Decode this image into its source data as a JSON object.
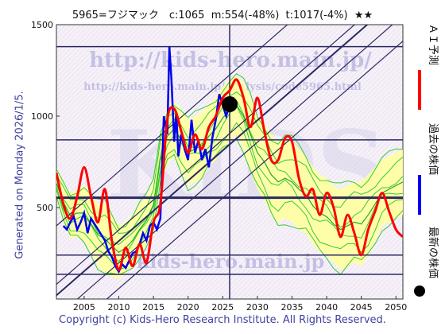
{
  "header": {
    "title": "5965=フジマック　c:1065  m:554(-48%)  t:1017(-4%)  ★★"
  },
  "side_note": "Generated on Monday 2026/1/5.",
  "footer": "Copyright (c) Kids-Hero Research Institute. All Rights Reserved.",
  "watermarks": {
    "url_main": "http://kids-hero.main.jp/",
    "url_sub": "http://kids-hero.main.jp/analysis/code5965.html",
    "url_bottom": "kids-hero.main.jp",
    "big": "KIDS"
  },
  "legend": {
    "ai_forecast": "ＡＩ予測",
    "past_price": "過去の株価",
    "latest_price": "最新の株価"
  },
  "colors": {
    "forecast": "#ff0000",
    "price": "#0000ee",
    "band": "#33cc33",
    "band_fill": "#ffffa0",
    "grid": "#2a2a60",
    "plot_bg": "#f4f0f8"
  },
  "chart_data": {
    "type": "line",
    "x_ticks": [
      2005,
      2010,
      2015,
      2020,
      2025,
      2030,
      2035,
      2040,
      2045,
      2050
    ],
    "y_ticks": [
      500,
      1000,
      1500
    ],
    "xlim": [
      2001,
      2051
    ],
    "ylim": [
      0,
      1500
    ],
    "horizontal_levels": [
      1380,
      870,
      554,
      240,
      135
    ],
    "current": {
      "year": 2026.0,
      "value": 1065
    },
    "markers": {
      "m": 554,
      "t": 1017
    },
    "series": [
      {
        "name": "ＡＩ予測",
        "x": [
          2001,
          2002,
          2003,
          2004,
          2005,
          2006,
          2007,
          2008,
          2009,
          2010,
          2011,
          2012,
          2013,
          2014,
          2015,
          2016,
          2017,
          2018,
          2019,
          2020,
          2021,
          2022,
          2023,
          2024,
          2025,
          2026,
          2027,
          2028,
          2029,
          2030,
          2031,
          2032,
          2033,
          2034,
          2035,
          2036,
          2037,
          2038,
          2039,
          2040,
          2041,
          2042,
          2043,
          2044,
          2045,
          2046,
          2047,
          2048,
          2049,
          2050,
          2051
        ],
        "values": [
          690,
          520,
          440,
          560,
          720,
          560,
          420,
          600,
          320,
          160,
          280,
          180,
          300,
          200,
          420,
          520,
          980,
          1040,
          920,
          800,
          900,
          820,
          940,
          1000,
          1100,
          1140,
          1200,
          1100,
          940,
          1100,
          920,
          760,
          760,
          880,
          860,
          660,
          560,
          600,
          460,
          580,
          500,
          340,
          460,
          360,
          240,
          380,
          480,
          580,
          480,
          380,
          340
        ]
      },
      {
        "name": "過去の株価",
        "x": [
          2002.0,
          2002.5,
          2003.0,
          2003.5,
          2004.0,
          2004.5,
          2005.0,
          2005.5,
          2006.0,
          2006.5,
          2007.0,
          2007.5,
          2008.0,
          2008.5,
          2009.0,
          2009.5,
          2010.0,
          2010.5,
          2011.0,
          2011.5,
          2012.0,
          2012.5,
          2013.0,
          2013.5,
          2014.0,
          2014.5,
          2015.0,
          2015.5,
          2016.0,
          2016.5,
          2017.0,
          2017.3,
          2017.6,
          2018.0,
          2018.3,
          2018.6,
          2019.0,
          2019.5,
          2020.0,
          2020.5,
          2021.0,
          2021.5,
          2022.0,
          2022.5,
          2023.0,
          2023.5,
          2024.0,
          2024.5,
          2025.0,
          2025.5,
          2026.0
        ],
        "values": [
          400,
          380,
          420,
          450,
          380,
          420,
          470,
          360,
          440,
          410,
          380,
          350,
          320,
          260,
          230,
          180,
          150,
          190,
          170,
          210,
          250,
          260,
          300,
          360,
          320,
          400,
          420,
          380,
          440,
          1000,
          900,
          1380,
          1200,
          860,
          1020,
          780,
          900,
          820,
          760,
          980,
          800,
          870,
          760,
          820,
          720,
          880,
          980,
          1120,
          1060,
          1000,
          1065
        ]
      }
    ],
    "band_lower": [
      560,
      420,
      330,
      340,
      320,
      260,
      180,
      140,
      120,
      110,
      140,
      180,
      240,
      300,
      380,
      620,
      740,
      780,
      700,
      620,
      640,
      660,
      720,
      760,
      820,
      860,
      900,
      820,
      700,
      600,
      540,
      460,
      420,
      440,
      420,
      380,
      360,
      300,
      260,
      240,
      200,
      160,
      180,
      200,
      180,
      240,
      320,
      400,
      420,
      440,
      460
    ],
    "band_upper": [
      700,
      640,
      580,
      600,
      620,
      560,
      520,
      520,
      460,
      400,
      420,
      460,
      520,
      560,
      640,
      900,
      1040,
      1080,
      1040,
      980,
      1000,
      1020,
      1060,
      1100,
      1160,
      1200,
      1220,
      1180,
      1100,
      1000,
      960,
      900,
      860,
      880,
      860,
      820,
      780,
      720,
      680,
      660,
      620,
      600,
      620,
      640,
      640,
      680,
      720,
      760,
      780,
      800,
      820
    ]
  }
}
